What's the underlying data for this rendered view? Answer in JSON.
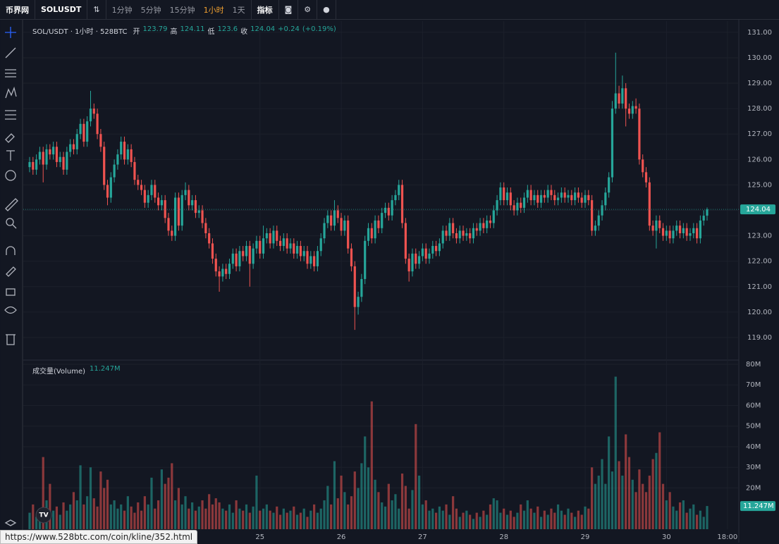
{
  "toolbar": {
    "logo": "币界网",
    "symbol": "SOLUSDT",
    "intervals": [
      "1分钟",
      "5分钟",
      "15分钟",
      "1小时",
      "1天"
    ],
    "active_interval": 3,
    "indicators": "指标"
  },
  "status_url": "https://www.528btc.com/coin/kline/352.html",
  "chart_data": {
    "type": "candlestick",
    "title": "SOL/USDT · 1小时 · 528BTC",
    "ohlc_labels": [
      "开",
      "高",
      "低",
      "收"
    ],
    "change": {
      "value": 0.24,
      "label": "+0.24"
    },
    "change_pct": {
      "value": 0.19,
      "label": "(+0.19%)"
    },
    "up_color": "#26a69a",
    "down_color": "#ef5350",
    "grid": true,
    "categories": [
      null,
      null,
      null,
      null,
      null,
      null,
      null,
      null,
      null,
      null,
      null,
      null,
      null,
      null,
      null,
      null,
      null,
      null,
      null,
      null,
      null,
      null,
      null,
      null,
      null,
      null,
      null,
      null,
      null,
      null,
      null,
      null,
      null,
      null,
      null,
      null,
      null,
      null,
      null,
      null,
      null,
      null,
      null,
      null,
      null,
      null,
      null,
      null,
      null,
      null,
      null,
      null,
      null,
      null,
      null,
      null,
      null,
      null,
      null,
      null,
      null,
      null,
      null,
      null,
      null,
      null,
      null,
      null,
      "25",
      null,
      null,
      null,
      null,
      null,
      null,
      null,
      null,
      null,
      null,
      null,
      null,
      null,
      null,
      null,
      null,
      null,
      null,
      null,
      null,
      null,
      null,
      null,
      "26",
      null,
      null,
      null,
      null,
      null,
      null,
      null,
      null,
      null,
      null,
      null,
      null,
      null,
      null,
      null,
      null,
      null,
      null,
      null,
      null,
      null,
      null,
      null,
      "27",
      null,
      null,
      null,
      null,
      null,
      null,
      null,
      null,
      null,
      null,
      null,
      null,
      null,
      null,
      null,
      null,
      null,
      null,
      null,
      null,
      null,
      null,
      null,
      "28",
      null,
      null,
      null,
      null,
      null,
      null,
      null,
      null,
      null,
      null,
      null,
      null,
      null,
      null,
      null,
      null,
      null,
      null,
      null,
      null,
      null,
      null,
      null,
      "29",
      null,
      null,
      null,
      null,
      null,
      null,
      null,
      null,
      null,
      null,
      null,
      null,
      null,
      null,
      null,
      null,
      null,
      null,
      null,
      null,
      null,
      null,
      null,
      "30",
      null,
      null,
      null,
      null,
      null,
      null,
      null,
      null,
      null,
      null,
      null,
      null,
      null,
      null,
      null,
      null,
      null,
      "18:00"
    ],
    "open": [
      125.7,
      125.9,
      125.6,
      126.0,
      126.3,
      125.8,
      126.4,
      126.2,
      126.5,
      125.9,
      126.1,
      125.6,
      126.3,
      126.6,
      126.4,
      127.0,
      127.4,
      126.7,
      127.5,
      128.0,
      127.8,
      127.0,
      126.5,
      125.0,
      124.5,
      125.3,
      125.8,
      126.2,
      126.7,
      126.0,
      126.4,
      125.9,
      125.2,
      125.0,
      124.8,
      124.3,
      124.6,
      125.0,
      124.5,
      124.2,
      124.4,
      123.7,
      123.2,
      123.0,
      124.5,
      123.4,
      124.6,
      124.8,
      124.2,
      124.4,
      123.9,
      124.0,
      123.5,
      123.1,
      122.7,
      122.1,
      121.6,
      121.4,
      121.7,
      121.5,
      121.9,
      122.3,
      121.8,
      122.4,
      122.2,
      122.6,
      121.9,
      122.5,
      122.8,
      122.3,
      122.9,
      123.1,
      122.7,
      123.2,
      122.8,
      122.6,
      122.9,
      122.5,
      122.7,
      122.3,
      122.6,
      122.2,
      122.4,
      121.9,
      122.2,
      121.8,
      122.4,
      122.9,
      123.5,
      123.8,
      123.4,
      124.0,
      123.7,
      123.2,
      123.6,
      122.5,
      121.8,
      120.2,
      120.6,
      121.3,
      122.8,
      123.3,
      122.9,
      123.6,
      123.3,
      123.9,
      124.1,
      123.8,
      124.4,
      124.6,
      125.0,
      123.5,
      122.1,
      121.6,
      122.3,
      121.9,
      122.2,
      122.5,
      122.1,
      122.3,
      122.6,
      122.4,
      122.7,
      123.2,
      123.0,
      123.5,
      123.1,
      122.9,
      123.2,
      123.0,
      123.1,
      122.9,
      123.3,
      123.2,
      123.5,
      123.3,
      123.6,
      123.5,
      124.0,
      124.4,
      124.9,
      124.4,
      124.7,
      124.2,
      124.0,
      124.3,
      124.1,
      124.5,
      124.8,
      124.4,
      124.6,
      124.3,
      124.6,
      124.5,
      124.8,
      124.6,
      124.4,
      124.5,
      124.7,
      124.5,
      124.6,
      124.4,
      124.7,
      124.5,
      124.3,
      124.6,
      124.4,
      123.2,
      123.4,
      123.8,
      124.2,
      124.7,
      125.3,
      128.0,
      128.6,
      128.2,
      128.8,
      128.0,
      127.8,
      128.1,
      128.0,
      126.0,
      125.5,
      125.1,
      123.4,
      123.2,
      123.6,
      123.3,
      123.0,
      123.2,
      122.9,
      123.2,
      123.4,
      123.1,
      123.3,
      123.0,
      123.1,
      123.3,
      122.9,
      123.6,
      123.79,
      null,
      null,
      null,
      null,
      null,
      null
    ],
    "high": [
      126.1,
      126.1,
      126.2,
      126.5,
      126.5,
      126.6,
      126.6,
      126.7,
      126.7,
      126.3,
      126.3,
      126.5,
      126.8,
      126.8,
      127.2,
      127.6,
      127.6,
      127.7,
      128.7,
      128.2,
      128.0,
      127.2,
      126.7,
      125.2,
      125.5,
      126.0,
      126.4,
      126.9,
      126.9,
      126.6,
      126.6,
      126.1,
      125.4,
      125.2,
      125.0,
      124.8,
      125.2,
      125.2,
      124.7,
      124.6,
      124.6,
      123.9,
      123.4,
      124.7,
      124.7,
      124.8,
      125.1,
      125.0,
      124.6,
      124.6,
      124.2,
      124.2,
      123.7,
      123.3,
      122.9,
      122.3,
      121.8,
      121.9,
      121.9,
      122.1,
      122.5,
      122.5,
      122.6,
      122.6,
      122.8,
      122.8,
      122.7,
      123.0,
      123.0,
      123.4,
      123.3,
      123.3,
      123.4,
      123.4,
      123.0,
      123.1,
      123.1,
      122.9,
      122.9,
      122.8,
      122.8,
      122.6,
      122.6,
      122.4,
      122.4,
      122.6,
      123.1,
      123.7,
      124.0,
      124.0,
      124.4,
      124.2,
      123.9,
      123.8,
      123.8,
      122.7,
      122.0,
      120.8,
      121.5,
      123.0,
      123.5,
      123.5,
      123.8,
      123.8,
      124.1,
      124.3,
      124.3,
      124.6,
      124.8,
      125.2,
      125.2,
      123.7,
      122.3,
      122.5,
      122.5,
      122.4,
      122.7,
      122.7,
      122.5,
      122.8,
      122.8,
      122.9,
      123.4,
      123.4,
      123.7,
      123.7,
      123.3,
      123.4,
      123.4,
      123.3,
      123.3,
      123.5,
      123.5,
      123.7,
      123.7,
      123.8,
      123.8,
      124.2,
      124.6,
      125.1,
      125.1,
      124.9,
      124.9,
      124.4,
      124.5,
      124.5,
      124.7,
      125.0,
      125.0,
      124.8,
      124.8,
      124.8,
      124.8,
      125.0,
      125.0,
      124.8,
      124.7,
      124.9,
      124.9,
      124.8,
      124.8,
      124.9,
      124.9,
      124.7,
      124.8,
      124.8,
      124.6,
      123.6,
      124.0,
      124.4,
      124.9,
      125.5,
      128.3,
      130.2,
      128.9,
      129.3,
      129.0,
      128.2,
      128.3,
      128.4,
      128.2,
      126.2,
      125.7,
      125.3,
      123.6,
      123.8,
      123.8,
      123.5,
      123.4,
      123.4,
      123.4,
      123.6,
      123.6,
      123.5,
      123.5,
      123.3,
      123.5,
      123.5,
      123.8,
      124.0,
      124.11,
      null,
      null,
      null,
      null,
      null,
      null
    ],
    "low": [
      125.5,
      125.4,
      125.4,
      125.8,
      125.1,
      125.6,
      126.0,
      126.0,
      125.7,
      125.7,
      125.4,
      125.4,
      126.1,
      126.2,
      126.2,
      126.8,
      126.5,
      126.5,
      127.3,
      127.6,
      126.8,
      126.3,
      124.8,
      124.2,
      124.3,
      125.1,
      125.6,
      126.0,
      125.8,
      125.8,
      125.7,
      125.0,
      124.8,
      124.6,
      124.1,
      124.1,
      124.4,
      124.3,
      124.0,
      124.0,
      123.5,
      123.0,
      122.8,
      122.8,
      123.2,
      123.2,
      124.4,
      124.0,
      124.0,
      123.7,
      123.7,
      123.3,
      122.9,
      122.5,
      121.9,
      121.4,
      120.8,
      121.2,
      121.3,
      121.3,
      121.7,
      121.6,
      121.6,
      122.0,
      122.0,
      121.0,
      121.7,
      122.3,
      122.1,
      122.1,
      122.7,
      122.5,
      122.5,
      122.6,
      122.4,
      122.4,
      122.3,
      122.3,
      122.1,
      122.1,
      122.0,
      122.0,
      121.7,
      121.7,
      121.6,
      121.6,
      122.2,
      122.7,
      123.3,
      123.2,
      123.2,
      123.5,
      123.0,
      123.0,
      122.3,
      121.6,
      119.3,
      119.9,
      120.4,
      121.1,
      122.6,
      122.7,
      122.7,
      123.1,
      123.1,
      123.7,
      123.6,
      123.6,
      124.2,
      124.4,
      123.3,
      121.9,
      121.2,
      121.4,
      121.7,
      121.7,
      122.0,
      121.9,
      121.9,
      122.1,
      122.2,
      122.2,
      122.5,
      122.8,
      122.8,
      122.9,
      122.7,
      122.7,
      122.8,
      122.8,
      122.7,
      122.7,
      123.0,
      123.0,
      123.1,
      123.1,
      123.3,
      123.3,
      123.8,
      124.2,
      124.2,
      124.2,
      124.0,
      123.8,
      123.8,
      123.9,
      123.9,
      124.3,
      124.2,
      124.2,
      124.1,
      124.1,
      124.3,
      124.3,
      124.4,
      124.2,
      124.2,
      124.3,
      124.3,
      124.3,
      124.2,
      124.2,
      124.3,
      124.1,
      124.1,
      124.2,
      123.0,
      123.0,
      123.2,
      123.6,
      124.0,
      124.5,
      125.1,
      127.8,
      128.0,
      128.0,
      127.3,
      127.6,
      127.6,
      127.8,
      125.8,
      125.3,
      124.9,
      123.2,
      123.0,
      122.5,
      123.1,
      122.8,
      122.8,
      122.7,
      122.7,
      123.0,
      122.9,
      122.9,
      122.8,
      122.8,
      122.9,
      122.7,
      122.7,
      123.4,
      123.6,
      null,
      null,
      null,
      null,
      null,
      null
    ],
    "close": [
      125.9,
      125.6,
      126.0,
      126.3,
      125.8,
      126.4,
      126.2,
      126.5,
      125.9,
      126.1,
      125.6,
      126.3,
      126.6,
      126.4,
      127.0,
      127.4,
      126.7,
      127.5,
      128.0,
      127.8,
      127.0,
      126.5,
      125.0,
      124.5,
      125.3,
      125.8,
      126.2,
      126.7,
      126.0,
      126.4,
      125.9,
      125.2,
      125.0,
      124.8,
      124.3,
      124.6,
      125.0,
      124.5,
      124.2,
      124.4,
      123.7,
      123.2,
      123.0,
      124.5,
      123.4,
      124.6,
      124.8,
      124.2,
      124.4,
      123.9,
      124.0,
      123.5,
      123.1,
      122.7,
      122.1,
      121.6,
      121.4,
      121.7,
      121.5,
      121.9,
      122.3,
      121.8,
      122.4,
      122.2,
      122.6,
      121.9,
      122.5,
      122.8,
      122.3,
      122.9,
      123.1,
      122.7,
      123.2,
      122.8,
      122.6,
      122.9,
      122.5,
      122.7,
      122.3,
      122.6,
      122.2,
      122.4,
      121.9,
      122.2,
      121.8,
      122.4,
      122.9,
      123.5,
      123.8,
      123.4,
      124.0,
      123.7,
      123.2,
      123.6,
      122.5,
      121.8,
      120.2,
      120.6,
      121.3,
      122.8,
      123.3,
      122.9,
      123.6,
      123.3,
      123.9,
      124.1,
      123.8,
      124.4,
      124.6,
      125.0,
      123.5,
      122.1,
      121.6,
      122.3,
      121.9,
      122.2,
      122.5,
      122.1,
      122.3,
      122.6,
      122.4,
      122.7,
      123.2,
      123.0,
      123.5,
      123.1,
      122.9,
      123.2,
      123.0,
      123.1,
      122.9,
      123.3,
      123.2,
      123.5,
      123.3,
      123.6,
      123.5,
      124.0,
      124.4,
      124.9,
      124.4,
      124.7,
      124.2,
      124.0,
      124.3,
      124.1,
      124.5,
      124.8,
      124.4,
      124.6,
      124.3,
      124.6,
      124.5,
      124.8,
      124.6,
      124.4,
      124.5,
      124.7,
      124.5,
      124.6,
      124.4,
      124.7,
      124.5,
      124.3,
      124.6,
      124.4,
      123.2,
      123.4,
      123.8,
      124.2,
      124.7,
      125.3,
      128.0,
      128.6,
      128.2,
      128.8,
      128.0,
      127.8,
      128.1,
      128.0,
      126.0,
      125.5,
      125.1,
      123.4,
      123.2,
      123.6,
      123.3,
      123.0,
      123.2,
      122.9,
      123.2,
      123.4,
      123.1,
      123.3,
      123.0,
      123.1,
      123.3,
      122.9,
      123.6,
      123.79,
      124.04,
      null,
      null,
      null,
      null,
      null,
      null
    ],
    "ylim": [
      118.14,
      131.44
    ],
    "yticks": [
      {
        "value": 119,
        "label": "119.00"
      },
      {
        "value": 120,
        "label": "120.00"
      },
      {
        "value": 121,
        "label": "121.00"
      },
      {
        "value": 122,
        "label": "122.00"
      },
      {
        "value": 123,
        "label": "123.00"
      },
      {
        "value": 124,
        "label": "124.00"
      },
      {
        "value": 125,
        "label": "125.00"
      },
      {
        "value": 126,
        "label": "126.00"
      },
      {
        "value": 127,
        "label": "127.00"
      },
      {
        "value": 128,
        "label": "128.00"
      },
      {
        "value": 129,
        "label": "129.00"
      },
      {
        "value": 130,
        "label": "130.00"
      },
      {
        "value": 131,
        "label": "131.00"
      }
    ],
    "volume": {
      "type": "bar",
      "title": "成交量(Volume)",
      "last": {
        "value": 11.247,
        "label": "11.247M"
      },
      "values": [
        8,
        12,
        6,
        10,
        35,
        14,
        22,
        9,
        11,
        7,
        13,
        9,
        12,
        18,
        14,
        31,
        12,
        16,
        30,
        15,
        11,
        28,
        20,
        24,
        12,
        14,
        10,
        12,
        9,
        16,
        11,
        8,
        13,
        9,
        16,
        12,
        25,
        10,
        14,
        29,
        22,
        25,
        32,
        14,
        20,
        12,
        16,
        10,
        13,
        9,
        11,
        14,
        10,
        17,
        12,
        15,
        13,
        10,
        9,
        12,
        8,
        14,
        10,
        9,
        12,
        8,
        11,
        26,
        9,
        10,
        12,
        9,
        8,
        11,
        7,
        10,
        8,
        9,
        11,
        7,
        8,
        10,
        6,
        9,
        12,
        8,
        10,
        14,
        21,
        12,
        33,
        15,
        26,
        18,
        12,
        16,
        28,
        20,
        32,
        45,
        30,
        62,
        24,
        18,
        13,
        11,
        22,
        14,
        17,
        10,
        27,
        21,
        10,
        19,
        51,
        26,
        12,
        14,
        9,
        10,
        8,
        11,
        9,
        12,
        7,
        16,
        10,
        6,
        8,
        9,
        7,
        5,
        8,
        6,
        9,
        7,
        12,
        15,
        14,
        8,
        10,
        7,
        9,
        6,
        8,
        12,
        9,
        14,
        10,
        8,
        11,
        6,
        9,
        7,
        10,
        8,
        12,
        9,
        7,
        10,
        8,
        6,
        9,
        7,
        11,
        10,
        30,
        22,
        26,
        34,
        22,
        45,
        28,
        74,
        33,
        26,
        46,
        35,
        24,
        18,
        29,
        22,
        18,
        26,
        34,
        37,
        47,
        22,
        14,
        18,
        11,
        9,
        13,
        14,
        8,
        10,
        12,
        7,
        9,
        6,
        11.247,
        null,
        null,
        null,
        null,
        null,
        null
      ],
      "ylim": [
        0,
        81.7
      ],
      "yticks": [
        {
          "value": 20,
          "label": "20M"
        },
        {
          "value": 30,
          "label": "30M"
        },
        {
          "value": 40,
          "label": "40M"
        },
        {
          "value": 50,
          "label": "50M"
        },
        {
          "value": 60,
          "label": "60M"
        },
        {
          "value": 70,
          "label": "70M"
        },
        {
          "value": 80,
          "label": "80M"
        }
      ]
    }
  }
}
